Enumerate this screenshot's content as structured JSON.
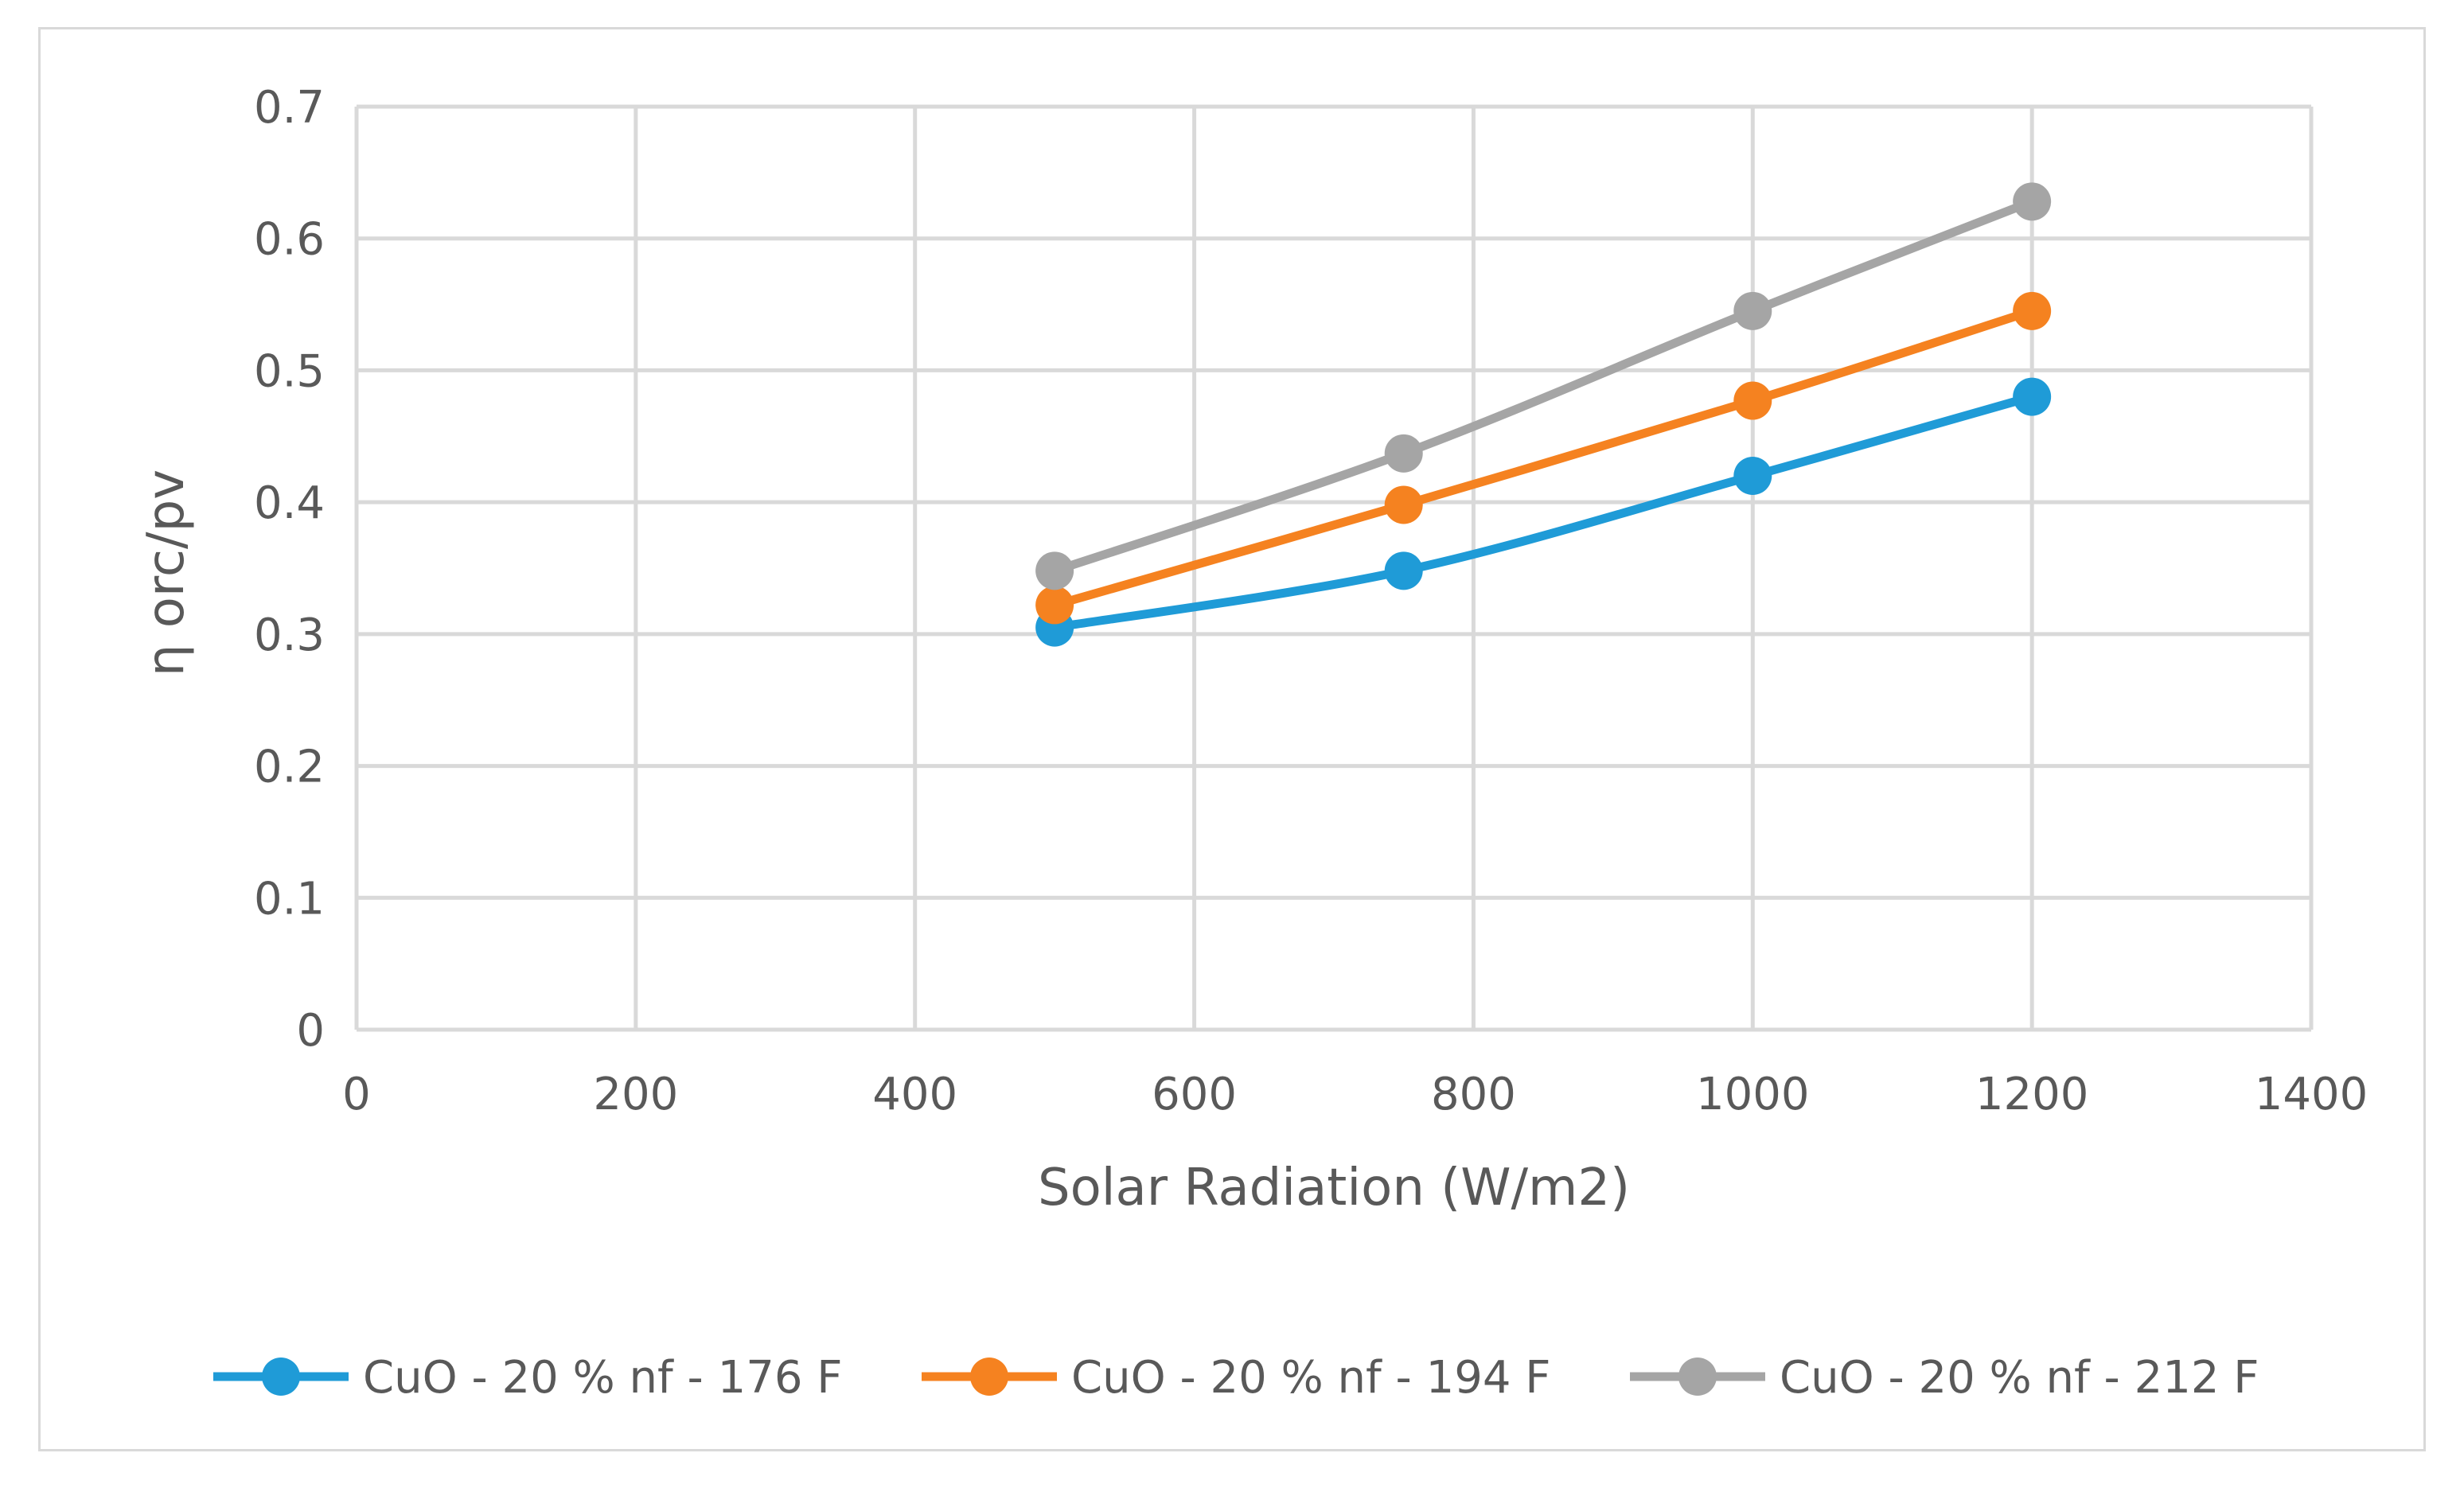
{
  "chart_data": {
    "type": "line",
    "title": "",
    "xlabel": "Solar Radiation (W/m2)",
    "ylabel": "η orc/pv",
    "xlim": [
      0,
      1400
    ],
    "ylim": [
      0,
      0.7
    ],
    "x_ticks": [
      "0",
      "200",
      "400",
      "600",
      "800",
      "1000",
      "1200",
      "1400"
    ],
    "y_ticks": [
      "0",
      "0.1",
      "0.2",
      "0.3",
      "0.4",
      "0.5",
      "0.6",
      "0.7"
    ],
    "grid": true,
    "legend_position": "bottom",
    "series": [
      {
        "name": "CuO - 20 % nf - 176 F",
        "color": "#1f9bd7",
        "x": [
          500,
          750,
          1000,
          1200
        ],
        "y": [
          0.305,
          0.348,
          0.42,
          0.48
        ]
      },
      {
        "name": "CuO - 20 % nf - 194 F",
        "color": "#f58220",
        "x": [
          500,
          750,
          1000,
          1200
        ],
        "y": [
          0.322,
          0.398,
          0.477,
          0.545
        ]
      },
      {
        "name": "CuO - 20 % nf - 212 F",
        "color": "#a5a5a5",
        "x": [
          500,
          750,
          1000,
          1200
        ],
        "y": [
          0.348,
          0.437,
          0.545,
          0.628
        ]
      }
    ]
  }
}
